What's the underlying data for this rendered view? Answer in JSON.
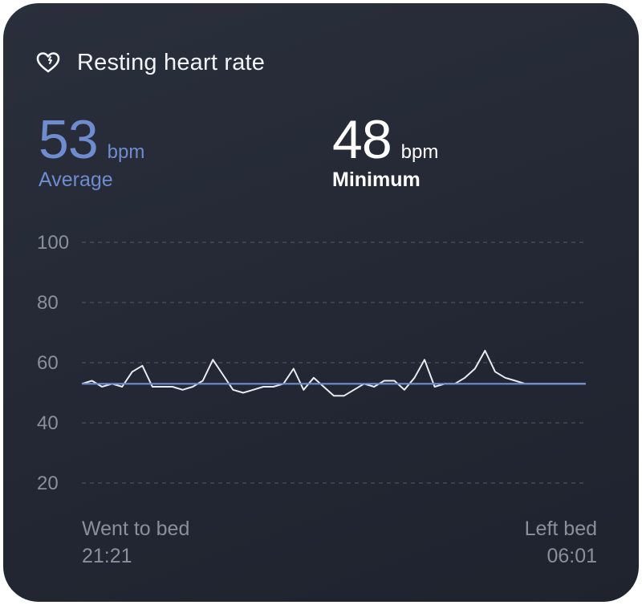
{
  "card": {
    "title": "Resting heart rate",
    "icon": "heart-rate-icon"
  },
  "stats": {
    "average": {
      "value": "53",
      "unit": "bpm",
      "label": "Average",
      "color": "#6f8ccf"
    },
    "minimum": {
      "value": "48",
      "unit": "bpm",
      "label": "Minimum",
      "color": "#ffffff"
    }
  },
  "footer": {
    "start_label": "Went to bed",
    "start_time": "21:21",
    "end_label": "Left bed",
    "end_time": "06:01"
  },
  "chart_data": {
    "type": "line",
    "ylim": [
      20,
      100
    ],
    "y_ticks": [
      100,
      80,
      60,
      40,
      20
    ],
    "grid": true,
    "x": [
      0,
      2,
      4,
      6,
      8,
      10,
      12,
      14,
      16,
      18,
      20,
      22,
      24,
      26,
      28,
      30,
      32,
      34,
      36,
      38,
      40,
      42,
      44,
      46,
      48,
      50,
      52,
      54,
      56,
      58,
      60,
      62,
      64,
      66,
      68,
      70,
      72,
      74,
      76,
      78,
      80,
      82,
      84,
      86,
      88,
      90,
      92,
      94,
      96,
      98,
      100
    ],
    "series": [
      {
        "color": "#e9ebef",
        "values": [
          53,
          54,
          52,
          53,
          52,
          57,
          59,
          52,
          52,
          52,
          51,
          52,
          54,
          61,
          56,
          51,
          50,
          51,
          52,
          52,
          53,
          58,
          51,
          55,
          52,
          49,
          49,
          51,
          53,
          52,
          54,
          54,
          51,
          55,
          61,
          52,
          53,
          53,
          55,
          58,
          64,
          57,
          55,
          54,
          53,
          53,
          53,
          53,
          53,
          53,
          53
        ]
      },
      {
        "color": "#6f8ccf",
        "values": [
          53,
          53,
          53,
          53,
          53,
          53,
          53,
          53,
          53,
          53,
          53,
          53,
          53,
          53,
          53,
          53,
          53,
          53,
          53,
          53,
          53,
          53,
          53,
          53,
          53,
          53,
          53,
          53,
          53,
          53,
          53,
          53,
          53,
          53,
          53,
          53,
          53,
          53,
          53,
          53,
          53,
          53,
          53,
          53,
          53,
          53,
          53,
          53,
          53,
          53,
          53
        ]
      }
    ]
  }
}
